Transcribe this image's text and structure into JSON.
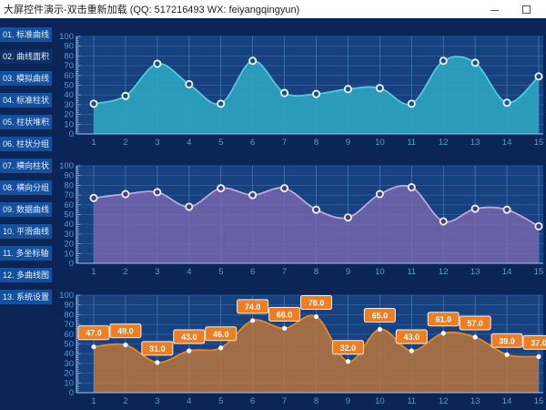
{
  "window": {
    "title": "大屏控件演示-双击重新加载 (QQ: 517216493  WX: feiyangqingyun)"
  },
  "sidebar": {
    "items": [
      {
        "label": "01. 标准曲线",
        "selected": false
      },
      {
        "label": "02. 曲线面积",
        "selected": true
      },
      {
        "label": "03. 模拟曲线",
        "selected": false
      },
      {
        "label": "04. 标准柱状",
        "selected": false
      },
      {
        "label": "05. 柱状堆积",
        "selected": false
      },
      {
        "label": "06. 柱状分组",
        "selected": false
      },
      {
        "label": "07. 横向柱状",
        "selected": false
      },
      {
        "label": "08. 横向分组",
        "selected": false
      },
      {
        "label": "09. 数据曲线",
        "selected": false
      },
      {
        "label": "10. 平滑曲线",
        "selected": false
      },
      {
        "label": "11. 多坐标轴",
        "selected": false
      },
      {
        "label": "12. 多曲线图",
        "selected": false
      },
      {
        "label": "13. 系统设置",
        "selected": false
      }
    ]
  },
  "palette": {
    "window_bg": "#0b2557",
    "plot_bg": "#17417f",
    "grid_h": "#2b62a4",
    "grid_v": "#3f79b8",
    "axis": "#9cc7e8",
    "tick_text": "#4f9fd9"
  },
  "chart_data": [
    {
      "type": "area",
      "name": "smooth-area-teal",
      "x": [
        1,
        2,
        3,
        4,
        5,
        6,
        7,
        8,
        9,
        10,
        11,
        12,
        13,
        14,
        15
      ],
      "values": [
        31,
        39,
        72,
        51,
        31,
        75,
        42,
        41,
        46,
        47,
        31,
        75,
        73,
        32,
        59
      ],
      "ylim": [
        0,
        100
      ],
      "ytick_step": 10,
      "grid": true,
      "marker": "ring",
      "show_point_labels": false,
      "colors": {
        "line": "#54c8de",
        "fill": "rgba(46,167,194,0.88)",
        "marker_fill": "#175087",
        "marker_stroke": "#f2fbfd"
      }
    },
    {
      "type": "area",
      "name": "smooth-area-purple",
      "x": [
        1,
        2,
        3,
        4,
        5,
        6,
        7,
        8,
        9,
        10,
        11,
        12,
        13,
        14,
        15
      ],
      "values": [
        67,
        71,
        73,
        58,
        77,
        70,
        77,
        55,
        47,
        71,
        78,
        43,
        56,
        55,
        38
      ],
      "ylim": [
        0,
        100
      ],
      "ytick_step": 10,
      "grid": true,
      "marker": "ring",
      "show_point_labels": false,
      "colors": {
        "line": "#b9a8dc",
        "fill": "rgba(125,104,176,0.80)",
        "marker_fill": "#473f78",
        "marker_stroke": "#f4f1fa"
      }
    },
    {
      "type": "area",
      "name": "smooth-area-orange-labeled",
      "x": [
        1,
        2,
        3,
        4,
        5,
        6,
        7,
        8,
        9,
        10,
        11,
        12,
        13,
        14,
        15
      ],
      "values": [
        47,
        49,
        31,
        43,
        46,
        74,
        66,
        78,
        32,
        65,
        43,
        61,
        57,
        39,
        37
      ],
      "ylim": [
        0,
        100
      ],
      "ytick_step": 10,
      "grid": true,
      "marker": "dot",
      "show_point_labels": true,
      "label_decimals": 1,
      "colors": {
        "line": "#e9861f",
        "fill": "rgba(190,120,58,0.82)",
        "marker_fill": "#ffffff",
        "marker_stroke": "#ffffff",
        "label_bg": "#ef7d23",
        "label_border": "#f7f3ea",
        "label_text": "#ffffff"
      }
    }
  ]
}
